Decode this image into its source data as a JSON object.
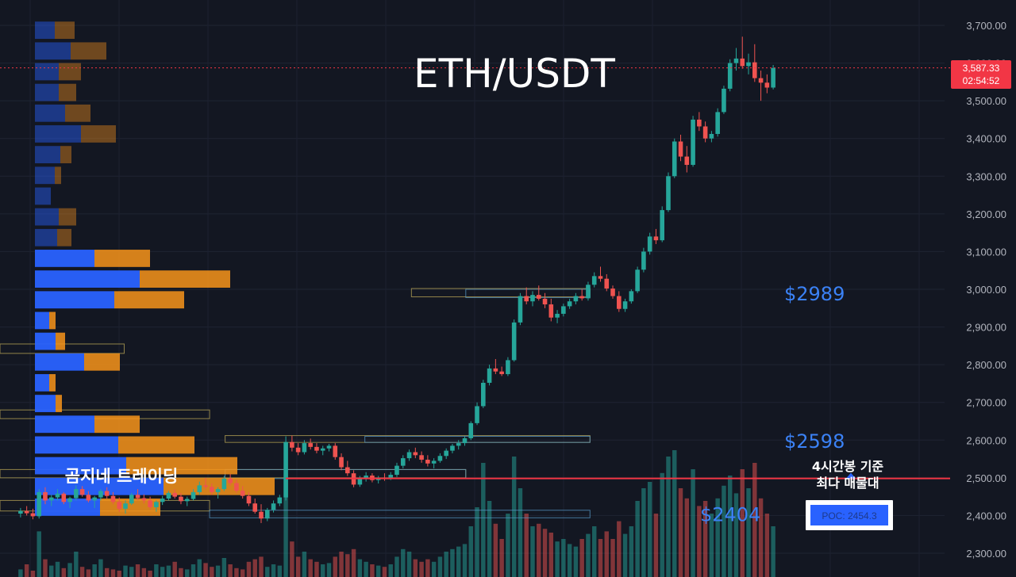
{
  "chart_data": {
    "type": "candlestick",
    "title": "ETH/USDT",
    "watermark": "곰지네 트레이딩",
    "y_axis": {
      "ylim": [
        2280,
        3740
      ],
      "ticks": [
        "3,700.00",
        "3,600.00",
        "3,500.00",
        "3,400.00",
        "3,300.00",
        "3,200.00",
        "3,100.00",
        "3,000.00",
        "2,900.00",
        "2,800.00",
        "2,700.00",
        "2,600.00",
        "2,500.00",
        "2,400.00",
        "2,300.00"
      ],
      "tick_values": [
        3700,
        3600,
        3500,
        3400,
        3300,
        3200,
        3100,
        3000,
        2900,
        2800,
        2700,
        2600,
        2500,
        2400,
        2300
      ],
      "position": "right"
    },
    "grid": true,
    "current_price": {
      "value": 3587.33,
      "label": "3,587.33",
      "countdown": "02:54:52",
      "color": "#f23645"
    },
    "levels": [
      {
        "value": 2989,
        "label": "$2989",
        "color": "#3b82f6"
      },
      {
        "value": 2598,
        "label": "$2598",
        "color": "#3b82f6"
      },
      {
        "value": 2404,
        "label": "$2404",
        "color": "#3b82f6"
      }
    ],
    "poc": {
      "value": 2454.3,
      "label": "POC: 2454.3",
      "note_line1": "4시간봉 기준",
      "note_line2": "최다 매물대",
      "color": "#f23645"
    },
    "colors": {
      "up": "#26a69a",
      "down": "#ef5350",
      "vp_buy": "#2962ff",
      "vp_sell": "#f7931a",
      "zone": "#c8b25a"
    },
    "volume_profile": [
      {
        "price": 3685,
        "buy": 25,
        "sell": 25,
        "faded": true
      },
      {
        "price": 3630,
        "buy": 45,
        "sell": 45,
        "faded": true
      },
      {
        "price": 3575,
        "buy": 30,
        "sell": 28,
        "faded": true
      },
      {
        "price": 3520,
        "buy": 30,
        "sell": 22,
        "faded": true
      },
      {
        "price": 3465,
        "buy": 38,
        "sell": 32,
        "faded": true
      },
      {
        "price": 3410,
        "buy": 58,
        "sell": 44,
        "faded": true
      },
      {
        "price": 3355,
        "buy": 32,
        "sell": 14,
        "faded": true
      },
      {
        "price": 3300,
        "buy": 25,
        "sell": 8,
        "faded": true
      },
      {
        "price": 3245,
        "buy": 20,
        "sell": 0,
        "faded": true
      },
      {
        "price": 3190,
        "buy": 30,
        "sell": 22,
        "faded": true
      },
      {
        "price": 3135,
        "buy": 28,
        "sell": 18,
        "faded": true
      },
      {
        "price": 3080,
        "buy": 75,
        "sell": 70,
        "faded": false
      },
      {
        "price": 3025,
        "buy": 132,
        "sell": 114,
        "faded": false
      },
      {
        "price": 2970,
        "buy": 100,
        "sell": 88,
        "faded": false
      },
      {
        "price": 2915,
        "buy": 18,
        "sell": 8,
        "faded": false
      },
      {
        "price": 2860,
        "buy": 26,
        "sell": 12,
        "faded": false
      },
      {
        "price": 2805,
        "buy": 62,
        "sell": 45,
        "faded": false
      },
      {
        "price": 2750,
        "buy": 18,
        "sell": 8,
        "faded": false
      },
      {
        "price": 2695,
        "buy": 26,
        "sell": 8,
        "faded": false
      },
      {
        "price": 2640,
        "buy": 75,
        "sell": 57,
        "faded": false
      },
      {
        "price": 2585,
        "buy": 105,
        "sell": 96,
        "faded": false
      },
      {
        "price": 2530,
        "buy": 115,
        "sell": 140,
        "faded": false
      },
      {
        "price": 2475,
        "buy": 162,
        "sell": 140,
        "faded": false
      },
      {
        "price": 2420,
        "buy": 82,
        "sell": 76,
        "faded": false
      }
    ],
    "zones": [
      {
        "from": 0.0,
        "to": 0.16,
        "low": 2830,
        "high": 2855,
        "stroke": "#c8b25a"
      },
      {
        "from": 0.0,
        "to": 0.27,
        "low": 2657,
        "high": 2680,
        "stroke": "#c8b25a"
      },
      {
        "from": 0.29,
        "to": 0.76,
        "low": 2594,
        "high": 2612,
        "stroke": "#c8b25a"
      },
      {
        "from": 0.0,
        "to": 0.6,
        "low": 2500,
        "high": 2522,
        "stroke": "#c8b25a"
      },
      {
        "from": 0.0,
        "to": 0.27,
        "low": 2412,
        "high": 2440,
        "stroke": "#c8b25a"
      },
      {
        "from": 0.29,
        "to": 0.6,
        "low": 2498,
        "high": 2522,
        "stroke": "#5aa0d0"
      },
      {
        "from": 0.53,
        "to": 0.76,
        "low": 2980,
        "high": 3002,
        "stroke": "#c8b25a"
      },
      {
        "from": 0.6,
        "to": 0.76,
        "low": 2978,
        "high": 3000,
        "stroke": "#5aa0d0"
      },
      {
        "from": 0.47,
        "to": 0.76,
        "low": 2594,
        "high": 2610,
        "stroke": "#5aa0d0"
      },
      {
        "from": 0.27,
        "to": 0.76,
        "low": 2394,
        "high": 2414,
        "stroke": "#5aa0d0"
      }
    ],
    "candles": [
      [
        2405,
        2420,
        2395,
        2412
      ],
      [
        2412,
        2425,
        2400,
        2406
      ],
      [
        2406,
        2418,
        2390,
        2398
      ],
      [
        2398,
        2470,
        2392,
        2462
      ],
      [
        2462,
        2475,
        2430,
        2440
      ],
      [
        2440,
        2455,
        2425,
        2448
      ],
      [
        2448,
        2470,
        2440,
        2458
      ],
      [
        2458,
        2462,
        2430,
        2436
      ],
      [
        2436,
        2450,
        2420,
        2446
      ],
      [
        2446,
        2480,
        2440,
        2470
      ],
      [
        2470,
        2478,
        2450,
        2455
      ],
      [
        2455,
        2465,
        2435,
        2440
      ],
      [
        2440,
        2452,
        2420,
        2448
      ],
      [
        2448,
        2470,
        2440,
        2465
      ],
      [
        2465,
        2475,
        2445,
        2452
      ],
      [
        2452,
        2462,
        2430,
        2436
      ],
      [
        2436,
        2448,
        2410,
        2418
      ],
      [
        2418,
        2440,
        2405,
        2432
      ],
      [
        2432,
        2460,
        2428,
        2455
      ],
      [
        2455,
        2470,
        2440,
        2446
      ],
      [
        2446,
        2456,
        2432,
        2440
      ],
      [
        2440,
        2450,
        2415,
        2422
      ],
      [
        2422,
        2440,
        2410,
        2436
      ],
      [
        2436,
        2452,
        2428,
        2445
      ],
      [
        2445,
        2465,
        2440,
        2460
      ],
      [
        2460,
        2470,
        2445,
        2450
      ],
      [
        2450,
        2460,
        2430,
        2438
      ],
      [
        2438,
        2450,
        2425,
        2444
      ],
      [
        2444,
        2470,
        2440,
        2462
      ],
      [
        2462,
        2490,
        2455,
        2480
      ],
      [
        2480,
        2500,
        2470,
        2476
      ],
      [
        2476,
        2485,
        2455,
        2462
      ],
      [
        2462,
        2475,
        2445,
        2470
      ],
      [
        2470,
        2505,
        2465,
        2498
      ],
      [
        2498,
        2510,
        2480,
        2486
      ],
      [
        2486,
        2495,
        2460,
        2466
      ],
      [
        2466,
        2478,
        2445,
        2452
      ],
      [
        2452,
        2462,
        2425,
        2432
      ],
      [
        2432,
        2445,
        2405,
        2410
      ],
      [
        2410,
        2430,
        2380,
        2392
      ],
      [
        2392,
        2420,
        2385,
        2415
      ],
      [
        2415,
        2440,
        2408,
        2432
      ],
      [
        2432,
        2455,
        2425,
        2448
      ],
      [
        2448,
        2610,
        2440,
        2595
      ],
      [
        2595,
        2612,
        2570,
        2580
      ],
      [
        2580,
        2592,
        2560,
        2568
      ],
      [
        2568,
        2600,
        2562,
        2592
      ],
      [
        2592,
        2604,
        2575,
        2582
      ],
      [
        2582,
        2592,
        2565,
        2572
      ],
      [
        2572,
        2585,
        2560,
        2578
      ],
      [
        2578,
        2590,
        2570,
        2585
      ],
      [
        2585,
        2592,
        2548,
        2555
      ],
      [
        2555,
        2565,
        2520,
        2528
      ],
      [
        2528,
        2545,
        2505,
        2512
      ],
      [
        2512,
        2520,
        2475,
        2482
      ],
      [
        2482,
        2505,
        2476,
        2498
      ],
      [
        2498,
        2515,
        2490,
        2506
      ],
      [
        2506,
        2512,
        2488,
        2494
      ],
      [
        2494,
        2505,
        2485,
        2500
      ],
      [
        2500,
        2512,
        2492,
        2498
      ],
      [
        2498,
        2515,
        2494,
        2508
      ],
      [
        2508,
        2540,
        2502,
        2532
      ],
      [
        2532,
        2560,
        2525,
        2552
      ],
      [
        2552,
        2575,
        2545,
        2568
      ],
      [
        2568,
        2580,
        2552,
        2560
      ],
      [
        2560,
        2570,
        2540,
        2548
      ],
      [
        2548,
        2560,
        2530,
        2538
      ],
      [
        2538,
        2552,
        2525,
        2545
      ],
      [
        2545,
        2565,
        2540,
        2558
      ],
      [
        2558,
        2578,
        2550,
        2572
      ],
      [
        2572,
        2590,
        2565,
        2585
      ],
      [
        2585,
        2600,
        2575,
        2592
      ],
      [
        2592,
        2610,
        2585,
        2605
      ],
      [
        2605,
        2650,
        2600,
        2645
      ],
      [
        2645,
        2700,
        2640,
        2690
      ],
      [
        2690,
        2760,
        2685,
        2752
      ],
      [
        2752,
        2800,
        2745,
        2790
      ],
      [
        2790,
        2815,
        2775,
        2782
      ],
      [
        2782,
        2795,
        2770,
        2775
      ],
      [
        2775,
        2820,
        2770,
        2812
      ],
      [
        2812,
        2920,
        2808,
        2912
      ],
      [
        2912,
        2990,
        2905,
        2982
      ],
      [
        2982,
        3005,
        2960,
        2968
      ],
      [
        2968,
        2995,
        2955,
        2985
      ],
      [
        2985,
        3010,
        2970,
        2975
      ],
      [
        2975,
        2990,
        2950,
        2960
      ],
      [
        2960,
        2975,
        2915,
        2925
      ],
      [
        2925,
        2945,
        2910,
        2935
      ],
      [
        2935,
        2962,
        2928,
        2955
      ],
      [
        2955,
        2975,
        2948,
        2968
      ],
      [
        2968,
        2990,
        2960,
        2982
      ],
      [
        2982,
        3000,
        2970,
        2976
      ],
      [
        2976,
        3020,
        2970,
        3012
      ],
      [
        3012,
        3045,
        3005,
        3035
      ],
      [
        3035,
        3060,
        3020,
        3028
      ],
      [
        3028,
        3040,
        2995,
        3002
      ],
      [
        3002,
        3010,
        2975,
        2982
      ],
      [
        2982,
        2995,
        2940,
        2948
      ],
      [
        2948,
        2975,
        2940,
        2968
      ],
      [
        2968,
        3000,
        2962,
        2995
      ],
      [
        2995,
        3060,
        2990,
        3052
      ],
      [
        3052,
        3110,
        3045,
        3100
      ],
      [
        3100,
        3150,
        3092,
        3140
      ],
      [
        3140,
        3160,
        3120,
        3130
      ],
      [
        3130,
        3220,
        3125,
        3210
      ],
      [
        3210,
        3310,
        3205,
        3300
      ],
      [
        3300,
        3400,
        3295,
        3392
      ],
      [
        3392,
        3410,
        3340,
        3352
      ],
      [
        3352,
        3380,
        3310,
        3330
      ],
      [
        3330,
        3460,
        3325,
        3450
      ],
      [
        3450,
        3470,
        3420,
        3432
      ],
      [
        3432,
        3445,
        3390,
        3400
      ],
      [
        3400,
        3420,
        3390,
        3412
      ],
      [
        3412,
        3480,
        3405,
        3470
      ],
      [
        3470,
        3540,
        3465,
        3532
      ],
      [
        3532,
        3610,
        3525,
        3600
      ],
      [
        3600,
        3640,
        3580,
        3612
      ],
      [
        3612,
        3670,
        3585,
        3592
      ],
      [
        3592,
        3625,
        3570,
        3602
      ],
      [
        3602,
        3650,
        3550,
        3560
      ],
      [
        3560,
        3580,
        3500,
        3548
      ],
      [
        3548,
        3570,
        3520,
        3535
      ],
      [
        3535,
        3595,
        3530,
        3587
      ]
    ],
    "volume": [
      0.06,
      0.1,
      0.05,
      0.36,
      0.14,
      0.09,
      0.12,
      0.07,
      0.11,
      0.2,
      0.08,
      0.06,
      0.1,
      0.14,
      0.07,
      0.06,
      0.05,
      0.09,
      0.08,
      0.1,
      0.07,
      0.05,
      0.1,
      0.08,
      0.09,
      0.12,
      0.07,
      0.06,
      0.1,
      0.14,
      0.11,
      0.08,
      0.09,
      0.15,
      0.1,
      0.07,
      0.06,
      0.12,
      0.14,
      0.16,
      0.08,
      0.1,
      0.09,
      0.82,
      0.28,
      0.16,
      0.2,
      0.14,
      0.12,
      0.1,
      0.11,
      0.16,
      0.2,
      0.18,
      0.22,
      0.14,
      0.12,
      0.1,
      0.09,
      0.08,
      0.1,
      0.16,
      0.22,
      0.2,
      0.14,
      0.12,
      0.14,
      0.12,
      0.16,
      0.2,
      0.22,
      0.24,
      0.26,
      0.4,
      0.55,
      0.9,
      0.6,
      0.42,
      0.3,
      0.5,
      0.95,
      0.7,
      0.5,
      0.4,
      0.42,
      0.38,
      0.35,
      0.28,
      0.3,
      0.26,
      0.24,
      0.3,
      0.34,
      0.4,
      0.3,
      0.36,
      0.3,
      0.44,
      0.34,
      0.4,
      0.6,
      0.7,
      0.75,
      0.5,
      0.82,
      0.95,
      1.0,
      0.7,
      0.62,
      0.85,
      0.56,
      0.6,
      0.5,
      0.62,
      0.72,
      0.8,
      0.66,
      0.85,
      0.7,
      0.9,
      0.62,
      0.5,
      0.4
    ]
  }
}
